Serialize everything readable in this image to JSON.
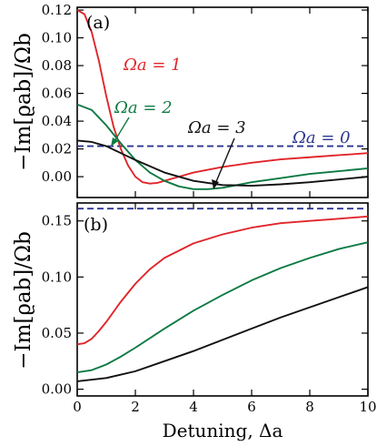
{
  "colors": {
    "red": "#e0262b",
    "green": "#0c7a43",
    "black": "#111111",
    "blue": "#2b3590"
  },
  "x_axis": {
    "label": "Detuning, Δa",
    "ticks": [
      "0",
      "2",
      "4",
      "6",
      "8",
      "10"
    ]
  },
  "chart_data": [
    {
      "type": "line",
      "panel_label": "(a)",
      "ylabel": "−Im[ϱab]/Ωb",
      "xlim": [
        0,
        10
      ],
      "ylim": [
        -0.015,
        0.122
      ],
      "y_ticks": [
        "0.00",
        "0.02",
        "0.04",
        "0.06",
        "0.08",
        "0.10",
        "0.12"
      ],
      "y_tick_values": [
        0,
        0.02,
        0.04,
        0.06,
        0.08,
        0.1,
        0.12
      ],
      "x_ticks": [
        0,
        2,
        4,
        6,
        8,
        10
      ],
      "series": [
        {
          "name": "Ωa = 0",
          "color": "#2b3590",
          "dashed": true,
          "x": [
            0,
            10
          ],
          "y": [
            0.022,
            0.022
          ]
        },
        {
          "name": "Ωa = 1",
          "color": "#e0262b",
          "dashed": false,
          "x": [
            0,
            0.25,
            0.5,
            0.75,
            1.0,
            1.25,
            1.5,
            1.75,
            2.0,
            2.25,
            2.5,
            2.75,
            3.0,
            3.5,
            4,
            5,
            6,
            7,
            8,
            9,
            10
          ],
          "y": [
            0.12,
            0.117,
            0.104,
            0.083,
            0.058,
            0.036,
            0.02,
            0.008,
            0.0,
            -0.004,
            -0.005,
            -0.0045,
            -0.003,
            0.0,
            0.003,
            0.007,
            0.01,
            0.0125,
            0.014,
            0.0155,
            0.017
          ]
        },
        {
          "name": "Ωa = 2",
          "color": "#0c7a43",
          "dashed": false,
          "x": [
            0,
            0.5,
            1.0,
            1.5,
            2.0,
            2.5,
            3.0,
            3.5,
            4.0,
            4.5,
            5.0,
            6,
            7,
            8,
            9,
            10
          ],
          "y": [
            0.052,
            0.048,
            0.037,
            0.024,
            0.012,
            0.003,
            -0.003,
            -0.007,
            -0.009,
            -0.009,
            -0.008,
            -0.004,
            -0.001,
            0.002,
            0.004,
            0.006
          ]
        },
        {
          "name": "Ωa = 3",
          "color": "#111111",
          "dashed": false,
          "x": [
            0,
            0.5,
            1.0,
            1.5,
            2.0,
            3.0,
            4.0,
            5.0,
            6.0,
            7.0,
            8.0,
            9.0,
            10.0
          ],
          "y": [
            0.026,
            0.025,
            0.022,
            0.017,
            0.012,
            0.003,
            -0.003,
            -0.006,
            -0.0065,
            -0.0055,
            -0.004,
            -0.002,
            0.0
          ]
        }
      ],
      "annotations": [
        {
          "text": "Ωa = 1",
          "color": "#e0262b"
        },
        {
          "text": "Ωa = 2",
          "color": "#0c7a43"
        },
        {
          "text": "Ωa = 3",
          "color": "#111111"
        },
        {
          "text": "Ωa = 0",
          "color": "#2b3590"
        }
      ]
    },
    {
      "type": "line",
      "panel_label": "(b)",
      "ylabel": "−Im[ϱab]/Ωb",
      "xlim": [
        0,
        10
      ],
      "ylim": [
        -0.006,
        0.166
      ],
      "y_ticks": [
        "0.00",
        "0.05",
        "0.10",
        "0.15"
      ],
      "y_tick_values": [
        0,
        0.05,
        0.1,
        0.15
      ],
      "x_ticks": [
        0,
        2,
        4,
        6,
        8,
        10
      ],
      "series": [
        {
          "name": "Ωa = 0",
          "color": "#2b3590",
          "dashed": true,
          "x": [
            0,
            10
          ],
          "y": [
            0.161,
            0.161
          ]
        },
        {
          "name": "Ωa = 1",
          "color": "#e0262b",
          "dashed": false,
          "x": [
            0,
            0.25,
            0.5,
            0.75,
            1.0,
            1.5,
            2.0,
            2.5,
            3.0,
            4.0,
            5.0,
            6.0,
            7.0,
            8.0,
            9.0,
            10.0
          ],
          "y": [
            0.04,
            0.041,
            0.045,
            0.052,
            0.06,
            0.078,
            0.094,
            0.107,
            0.117,
            0.13,
            0.138,
            0.144,
            0.148,
            0.15,
            0.152,
            0.154
          ]
        },
        {
          "name": "Ωa = 2",
          "color": "#0c7a43",
          "dashed": false,
          "x": [
            0,
            0.5,
            1.0,
            1.5,
            2.0,
            3.0,
            4.0,
            5.0,
            6.0,
            7.0,
            8.0,
            9.0,
            10.0
          ],
          "y": [
            0.015,
            0.017,
            0.022,
            0.029,
            0.037,
            0.054,
            0.07,
            0.084,
            0.097,
            0.108,
            0.117,
            0.125,
            0.131
          ]
        },
        {
          "name": "Ωa = 3",
          "color": "#111111",
          "dashed": false,
          "x": [
            0,
            1.0,
            2.0,
            3.0,
            4.0,
            5.0,
            6.0,
            7.0,
            8.0,
            9.0,
            10.0
          ],
          "y": [
            0.007,
            0.01,
            0.016,
            0.025,
            0.034,
            0.044,
            0.054,
            0.064,
            0.073,
            0.082,
            0.091
          ]
        }
      ]
    }
  ]
}
